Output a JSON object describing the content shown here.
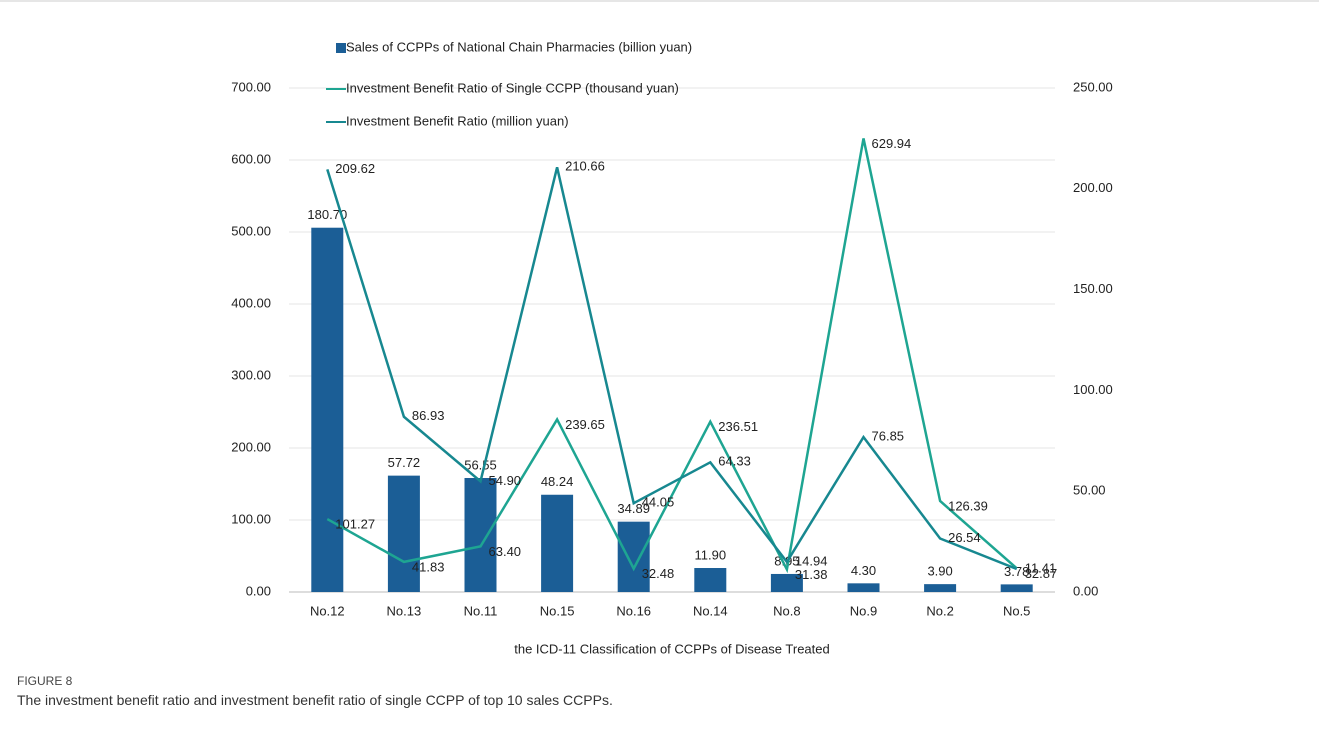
{
  "chart_data": {
    "type": "bar-line",
    "x_label": "the ICD-11 Classification of CCPPs of Disease Treated",
    "categories": [
      "No.12",
      "No.13",
      "No.11",
      "No.15",
      "No.16",
      "No.14",
      "No.8",
      "No.9",
      "No.2",
      "No.5"
    ],
    "series": [
      {
        "name": "Sales of CCPPs of National Chain Pharmacies (billion yuan)",
        "type": "bar",
        "axis": "y2",
        "color": "#1b5e96",
        "values": [
          180.7,
          57.72,
          56.55,
          48.24,
          34.89,
          11.9,
          8.95,
          4.3,
          3.9,
          3.78
        ],
        "value_labels": [
          "180.70",
          "57.72",
          "56.55",
          "48.24",
          "34.89",
          "11.90",
          "8.95",
          "4.30",
          "3.90",
          "3.78"
        ]
      },
      {
        "name": "Investment Benefit Ratio of Single CCPP (thousand yuan)",
        "type": "line",
        "axis": "y",
        "color": "#1ea592",
        "values": [
          101.27,
          41.83,
          63.4,
          239.65,
          32.48,
          236.51,
          31.38,
          629.94,
          126.39,
          32.87
        ],
        "value_labels": [
          "101.27",
          "41.83",
          "63.40",
          "239.65",
          "32.48",
          "236.51",
          "31.38",
          "629.94",
          "126.39",
          "32.87"
        ]
      },
      {
        "name": "Investment Benefit Ratio (million yuan)",
        "type": "line",
        "axis": "y2",
        "color": "#178890",
        "values": [
          209.62,
          86.93,
          54.9,
          210.66,
          44.05,
          64.33,
          14.94,
          76.85,
          26.54,
          11.41
        ],
        "value_labels": [
          "209.62",
          "86.93",
          "54.90",
          "210.66",
          "44.05",
          "64.33",
          "14.94",
          "76.85",
          "26.54",
          "11.41"
        ]
      }
    ],
    "ylim": [
      0,
      700
    ],
    "yticks": [
      {
        "value": 0,
        "label": "0.00"
      },
      {
        "value": 100,
        "label": "100.00"
      },
      {
        "value": 200,
        "label": "200.00"
      },
      {
        "value": 300,
        "label": "300.00"
      },
      {
        "value": 400,
        "label": "400.00"
      },
      {
        "value": 500,
        "label": "500.00"
      },
      {
        "value": 600,
        "label": "600.00"
      },
      {
        "value": 700,
        "label": "700.00"
      }
    ],
    "y2lim": [
      0,
      250
    ],
    "y2ticks": [
      {
        "value": 0,
        "label": "0.00"
      },
      {
        "value": 50,
        "label": "50.00"
      },
      {
        "value": 100,
        "label": "100.00"
      },
      {
        "value": 150,
        "label": "150.00"
      },
      {
        "value": 200,
        "label": "200.00"
      },
      {
        "value": 250,
        "label": "250.00"
      }
    ],
    "grid": true
  },
  "caption": {
    "label": "FIGURE 8",
    "text": "The investment benefit ratio and investment benefit ratio of single CCPP of top 10 sales CCPPs."
  }
}
